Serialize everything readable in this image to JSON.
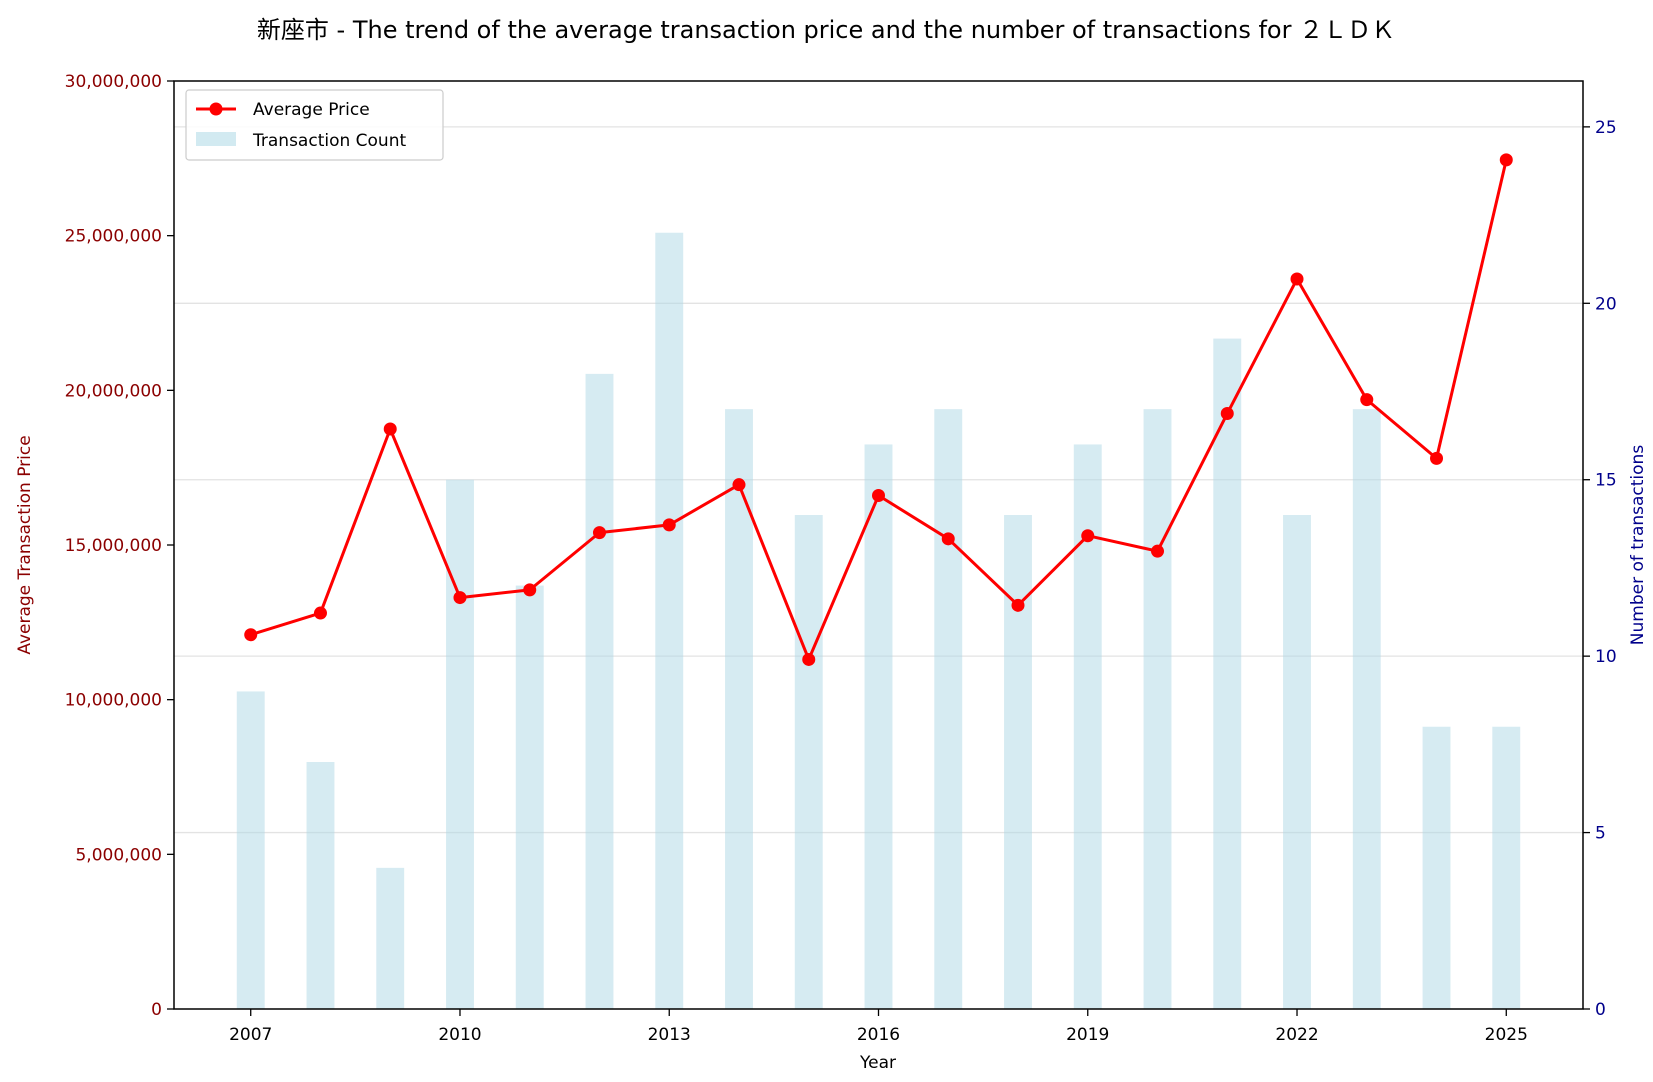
{
  "chart_data": {
    "type": "bar+line",
    "title": "新座市 - The trend of the average transaction price and the number of transactions for ２ＬＤＫ",
    "xlabel": "Year",
    "ylabel_left": "Average Transaction Price",
    "ylabel_right": "Number of transactions",
    "x": [
      2007,
      2008,
      2009,
      2010,
      2011,
      2012,
      2013,
      2014,
      2015,
      2016,
      2017,
      2018,
      2019,
      2020,
      2021,
      2022,
      2023,
      2024,
      2025
    ],
    "x_ticks": [
      "2007",
      "2010",
      "2013",
      "2016",
      "2019",
      "2022",
      "2025"
    ],
    "xlim": [
      2005.9,
      2026.1
    ],
    "ylim_left": [
      0,
      30000000
    ],
    "yticks_left": [
      "0",
      "5,000,000",
      "10,000,000",
      "15,000,000",
      "20,000,000",
      "25,000,000",
      "30,000,000"
    ],
    "ylim_right": [
      0,
      26.3
    ],
    "yticks_right": [
      "0",
      "5",
      "10",
      "15",
      "20",
      "25"
    ],
    "grid": "horizontal (right axis)",
    "legend_position": "top-left",
    "series": [
      {
        "name": "Average Price",
        "type": "line",
        "axis": "left",
        "color": "#ff0000",
        "values": [
          12100000,
          12800000,
          18750000,
          13300000,
          13550000,
          15400000,
          15650000,
          16950000,
          11300000,
          16600000,
          15200000,
          13050000,
          15300000,
          14800000,
          19250000,
          23600000,
          19700000,
          17800000,
          27450000
        ]
      },
      {
        "name": "Transaction Count",
        "type": "bar",
        "axis": "right",
        "color": "#add8e6",
        "values": [
          9,
          7,
          4,
          15,
          12,
          18,
          22,
          17,
          14,
          16,
          17,
          14,
          16,
          17,
          19,
          14,
          17,
          8,
          8
        ]
      }
    ],
    "colors": {
      "left_axis": "#8b0000",
      "right_axis": "#00008b",
      "line": "#ff0000",
      "bar": "#add8e6"
    }
  }
}
